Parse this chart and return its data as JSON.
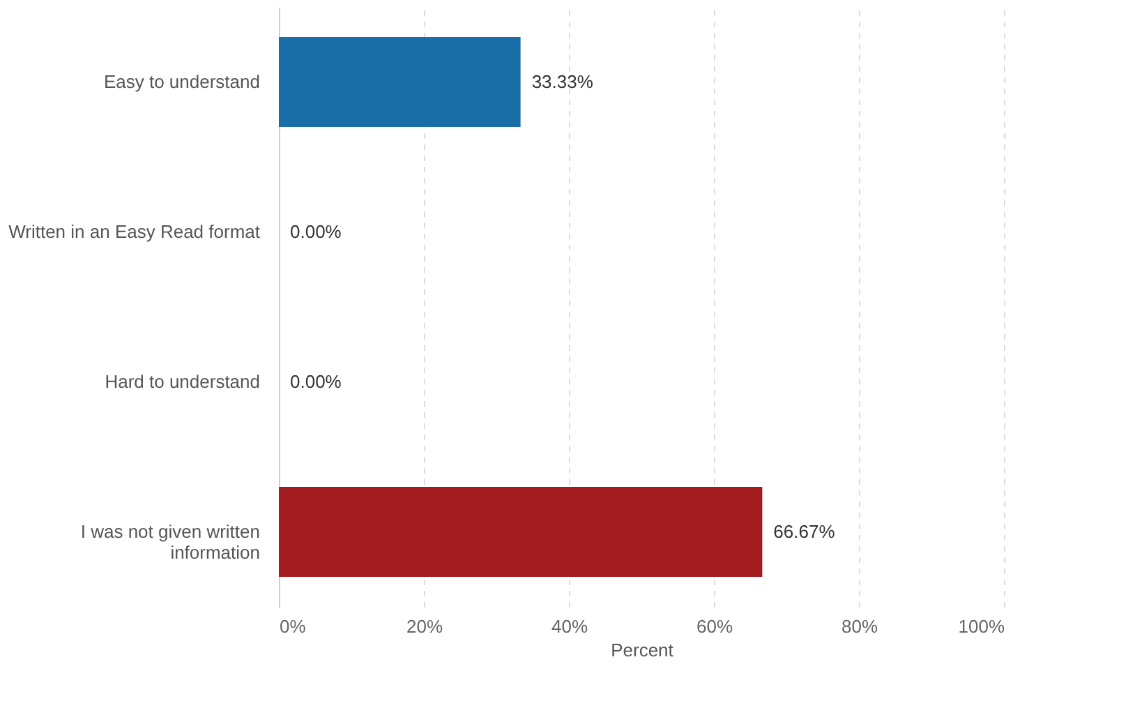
{
  "chart_data": {
    "type": "bar",
    "orientation": "horizontal",
    "xlabel": "Percent",
    "categories": [
      "Easy to understand",
      "Written in an Easy Read format",
      "Hard to understand",
      "I was not given written information"
    ],
    "values": [
      33.33,
      0,
      0,
      66.67
    ],
    "colors": [
      "#1a6ea8",
      "#1a6ea8",
      "#1a6ea8",
      "#a31c1f"
    ],
    "value_labels": [
      "33.33%",
      "0.00%",
      "0.00%",
      "66.67%"
    ],
    "xlim": [
      0,
      100
    ],
    "xticks": [
      {
        "value": 0,
        "label": "0%"
      },
      {
        "value": 20,
        "label": "20%"
      },
      {
        "value": 40,
        "label": "40%"
      },
      {
        "value": 60,
        "label": "60%"
      },
      {
        "value": 80,
        "label": "80%"
      },
      {
        "value": 100,
        "label": "100%"
      }
    ],
    "grid": "x"
  }
}
